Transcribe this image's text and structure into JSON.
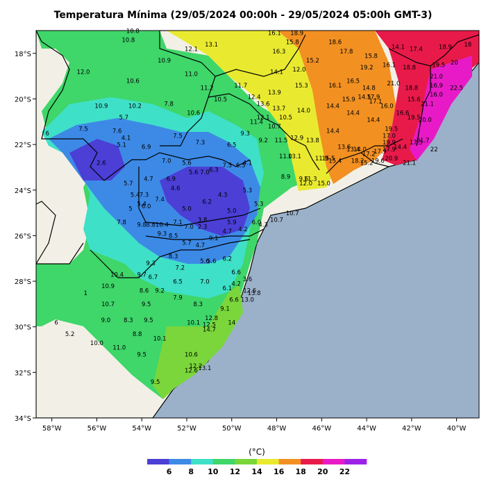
{
  "title": "Temperatura Mínima (29/05/2024 00:00h - 29/05/2024 05:00h GMT-3)",
  "map": {
    "lon_range": [
      -58.7,
      -39.0
    ],
    "lat_range": [
      -34.0,
      -17.0
    ],
    "lon_ticks": [
      {
        "lon": -58,
        "label": "58°W"
      },
      {
        "lon": -56,
        "label": "56°W"
      },
      {
        "lon": -54,
        "label": "54°W"
      },
      {
        "lon": -52,
        "label": "52°W"
      },
      {
        "lon": -50,
        "label": "50°W"
      },
      {
        "lon": -48,
        "label": "48°W"
      },
      {
        "lon": -46,
        "label": "46°W"
      },
      {
        "lon": -44,
        "label": "44°W"
      },
      {
        "lon": -42,
        "label": "42°W"
      },
      {
        "lon": -40,
        "label": "40°W"
      }
    ],
    "lat_ticks": [
      {
        "lat": -18,
        "label": "18°S"
      },
      {
        "lat": -20,
        "label": "20°S"
      },
      {
        "lat": -22,
        "label": "22°S"
      },
      {
        "lat": -24,
        "label": "24°S"
      },
      {
        "lat": -26,
        "label": "26°S"
      },
      {
        "lat": -28,
        "label": "28°S"
      },
      {
        "lat": -30,
        "label": "30°S"
      },
      {
        "lat": -32,
        "label": "32°S"
      },
      {
        "lat": -34,
        "label": "34°S"
      }
    ],
    "ocean_color": "#9bb1c9",
    "land_color": "#f2f0e6",
    "station_values": [
      {
        "lon": -54.4,
        "lat": -17.1,
        "v": "10.8"
      },
      {
        "lon": -54.6,
        "lat": -17.5,
        "v": "10.8"
      },
      {
        "lon": -51.8,
        "lat": -17.9,
        "v": "12.1"
      },
      {
        "lon": -50.9,
        "lat": -17.7,
        "v": "13.1"
      },
      {
        "lon": -53.0,
        "lat": -18.4,
        "v": "10.9"
      },
      {
        "lon": -56.6,
        "lat": -18.9,
        "v": "12.0"
      },
      {
        "lon": -54.4,
        "lat": -19.3,
        "v": "10.6"
      },
      {
        "lon": -51.8,
        "lat": -19.0,
        "v": "11.0"
      },
      {
        "lon": -51.1,
        "lat": -19.6,
        "v": "11.2"
      },
      {
        "lon": -49.6,
        "lat": -19.5,
        "v": "11.7"
      },
      {
        "lon": -50.5,
        "lat": -20.1,
        "v": "10.5"
      },
      {
        "lon": -55.8,
        "lat": -20.4,
        "v": "10.9"
      },
      {
        "lon": -54.3,
        "lat": -20.4,
        "v": "10.2"
      },
      {
        "lon": -52.8,
        "lat": -20.3,
        "v": "7.8"
      },
      {
        "lon": -51.7,
        "lat": -20.7,
        "v": "10.6"
      },
      {
        "lon": -54.8,
        "lat": -20.9,
        "v": "5.7"
      },
      {
        "lon": -56.6,
        "lat": -21.4,
        "v": "7.5"
      },
      {
        "lon": -55.1,
        "lat": -21.5,
        "v": "7.6"
      },
      {
        "lon": -54.7,
        "lat": -21.8,
        "v": "4.1"
      },
      {
        "lon": -58.2,
        "lat": -21.6,
        "v": "6"
      },
      {
        "lon": -52.4,
        "lat": -21.7,
        "v": "7.5"
      },
      {
        "lon": -54.9,
        "lat": -22.1,
        "v": "5.1"
      },
      {
        "lon": -53.8,
        "lat": -22.2,
        "v": "6.9"
      },
      {
        "lon": -51.4,
        "lat": -22.0,
        "v": "7.3"
      },
      {
        "lon": -50.0,
        "lat": -22.1,
        "v": "6.5"
      },
      {
        "lon": -49.4,
        "lat": -21.6,
        "v": "9.3"
      },
      {
        "lon": -48.6,
        "lat": -21.9,
        "v": "9.2"
      },
      {
        "lon": -47.8,
        "lat": -21.9,
        "v": "11.5"
      },
      {
        "lon": -55.8,
        "lat": -22.9,
        "v": "2.6"
      },
      {
        "lon": -52.9,
        "lat": -22.8,
        "v": "7.0"
      },
      {
        "lon": -52.0,
        "lat": -22.9,
        "v": "5.6"
      },
      {
        "lon": -51.7,
        "lat": -23.3,
        "v": "5.6"
      },
      {
        "lon": -51.2,
        "lat": -23.3,
        "v": "7.0"
      },
      {
        "lon": -50.8,
        "lat": -23.2,
        "v": "6.3"
      },
      {
        "lon": -50.2,
        "lat": -23.0,
        "v": "7.5"
      },
      {
        "lon": -49.6,
        "lat": -23.0,
        "v": "6.5"
      },
      {
        "lon": -49.3,
        "lat": -22.9,
        "v": "4.1"
      },
      {
        "lon": -53.7,
        "lat": -23.6,
        "v": "4.7"
      },
      {
        "lon": -52.7,
        "lat": -23.6,
        "v": "6.9"
      },
      {
        "lon": -54.6,
        "lat": -23.8,
        "v": "5.7"
      },
      {
        "lon": -52.5,
        "lat": -24.0,
        "v": "4.6"
      },
      {
        "lon": -50.4,
        "lat": -24.3,
        "v": "4.3"
      },
      {
        "lon": -49.3,
        "lat": -24.1,
        "v": "5.3"
      },
      {
        "lon": -54.3,
        "lat": -24.3,
        "v": "5.4"
      },
      {
        "lon": -53.9,
        "lat": -24.3,
        "v": "7.3"
      },
      {
        "lon": -53.2,
        "lat": -24.5,
        "v": "7.4"
      },
      {
        "lon": -51.1,
        "lat": -24.6,
        "v": "6.2"
      },
      {
        "lon": -54.0,
        "lat": -24.7,
        "v": "5.4"
      },
      {
        "lon": -53.8,
        "lat": -24.8,
        "v": "6.0"
      },
      {
        "lon": -52.0,
        "lat": -24.9,
        "v": "5.0"
      },
      {
        "lon": -50.0,
        "lat": -25.0,
        "v": "5.0"
      },
      {
        "lon": -48.8,
        "lat": -24.7,
        "v": "5.3"
      },
      {
        "lon": -54.5,
        "lat": -24.9,
        "v": "5"
      },
      {
        "lon": -54.9,
        "lat": -25.5,
        "v": "7.8"
      },
      {
        "lon": -54.0,
        "lat": -25.6,
        "v": "9.8"
      },
      {
        "lon": -53.6,
        "lat": -25.6,
        "v": "8.8"
      },
      {
        "lon": -53.1,
        "lat": -25.6,
        "v": "10.4"
      },
      {
        "lon": -52.4,
        "lat": -25.5,
        "v": "7.1"
      },
      {
        "lon": -51.9,
        "lat": -25.7,
        "v": "7.0"
      },
      {
        "lon": -51.3,
        "lat": -25.4,
        "v": "3.8"
      },
      {
        "lon": -51.3,
        "lat": -25.7,
        "v": "2.3"
      },
      {
        "lon": -50.0,
        "lat": -25.5,
        "v": "5.9"
      },
      {
        "lon": -49.5,
        "lat": -25.8,
        "v": "4.2"
      },
      {
        "lon": -50.2,
        "lat": -25.9,
        "v": "4.7"
      },
      {
        "lon": -48.9,
        "lat": -25.5,
        "v": "6.0"
      },
      {
        "lon": -48.6,
        "lat": -25.6,
        "v": "4.3"
      },
      {
        "lon": -48.0,
        "lat": -25.4,
        "v": "10.7"
      },
      {
        "lon": -47.3,
        "lat": -25.1,
        "v": "10.7"
      },
      {
        "lon": -53.1,
        "lat": -26.0,
        "v": "9.3"
      },
      {
        "lon": -52.6,
        "lat": -26.1,
        "v": "8.5"
      },
      {
        "lon": -50.8,
        "lat": -26.2,
        "v": "9.1"
      },
      {
        "lon": -52.0,
        "lat": -26.4,
        "v": "5.7"
      },
      {
        "lon": -51.4,
        "lat": -26.5,
        "v": "4.7"
      },
      {
        "lon": -52.6,
        "lat": -27.0,
        "v": "8.3"
      },
      {
        "lon": -51.2,
        "lat": -27.2,
        "v": "5.6"
      },
      {
        "lon": -50.9,
        "lat": -27.2,
        "v": "5.6"
      },
      {
        "lon": -50.2,
        "lat": -27.1,
        "v": "6.2"
      },
      {
        "lon": -53.6,
        "lat": -27.3,
        "v": "9.3"
      },
      {
        "lon": -52.3,
        "lat": -27.5,
        "v": "7.2"
      },
      {
        "lon": -49.8,
        "lat": -27.7,
        "v": "6.6"
      },
      {
        "lon": -55.1,
        "lat": -27.8,
        "v": "10.4"
      },
      {
        "lon": -54.0,
        "lat": -27.8,
        "v": "9.7"
      },
      {
        "lon": -53.5,
        "lat": -27.9,
        "v": "6.7"
      },
      {
        "lon": -52.4,
        "lat": -28.1,
        "v": "6.5"
      },
      {
        "lon": -51.2,
        "lat": -28.1,
        "v": "7.0"
      },
      {
        "lon": -49.3,
        "lat": -28.0,
        "v": "3.6"
      },
      {
        "lon": -49.8,
        "lat": -28.2,
        "v": "4.2"
      },
      {
        "lon": -50.2,
        "lat": -28.4,
        "v": "6.1"
      },
      {
        "lon": -55.5,
        "lat": -28.3,
        "v": "10.9"
      },
      {
        "lon": -53.9,
        "lat": -28.5,
        "v": "8.6"
      },
      {
        "lon": -53.2,
        "lat": -28.5,
        "v": "9.2"
      },
      {
        "lon": -52.4,
        "lat": -28.8,
        "v": "7.9"
      },
      {
        "lon": -49.2,
        "lat": -28.5,
        "v": "12.6"
      },
      {
        "lon": -49.0,
        "lat": -28.6,
        "v": "13.8"
      },
      {
        "lon": -49.3,
        "lat": -28.9,
        "v": "13.0"
      },
      {
        "lon": -49.9,
        "lat": -28.9,
        "v": "6.6"
      },
      {
        "lon": -56.5,
        "lat": -28.6,
        "v": "1"
      },
      {
        "lon": -55.5,
        "lat": -29.1,
        "v": "10.7"
      },
      {
        "lon": -53.8,
        "lat": -29.1,
        "v": "9.5"
      },
      {
        "lon": -51.5,
        "lat": -29.1,
        "v": "8.3"
      },
      {
        "lon": -50.3,
        "lat": -29.3,
        "v": "9.1"
      },
      {
        "lon": -55.6,
        "lat": -29.8,
        "v": "9.0"
      },
      {
        "lon": -54.6,
        "lat": -29.8,
        "v": "8.3"
      },
      {
        "lon": -53.7,
        "lat": -29.8,
        "v": "9.5"
      },
      {
        "lon": -51.7,
        "lat": -29.9,
        "v": "10.1"
      },
      {
        "lon": -50.9,
        "lat": -29.7,
        "v": "12.8"
      },
      {
        "lon": -57.8,
        "lat": -29.9,
        "v": "6"
      },
      {
        "lon": -51.0,
        "lat": -30.0,
        "v": "12.5"
      },
      {
        "lon": -50.0,
        "lat": -29.9,
        "v": "14"
      },
      {
        "lon": -51.0,
        "lat": -30.2,
        "v": "14.7"
      },
      {
        "lon": -54.2,
        "lat": -30.4,
        "v": "8.8"
      },
      {
        "lon": -53.2,
        "lat": -30.6,
        "v": "10.1"
      },
      {
        "lon": -57.2,
        "lat": -30.4,
        "v": "5.2"
      },
      {
        "lon": -56.0,
        "lat": -30.8,
        "v": "10.0"
      },
      {
        "lon": -55.0,
        "lat": -31.0,
        "v": "11.0"
      },
      {
        "lon": -51.8,
        "lat": -31.3,
        "v": "10.6"
      },
      {
        "lon": -54.0,
        "lat": -31.3,
        "v": "9.5"
      },
      {
        "lon": -51.6,
        "lat": -31.8,
        "v": "12.2"
      },
      {
        "lon": -51.2,
        "lat": -31.9,
        "v": "13.1"
      },
      {
        "lon": -51.8,
        "lat": -32.0,
        "v": "12.6"
      },
      {
        "lon": -53.4,
        "lat": -32.5,
        "v": "9.5"
      },
      {
        "lon": -49.0,
        "lat": -20.0,
        "v": "12.4"
      },
      {
        "lon": -48.6,
        "lat": -20.3,
        "v": "13.6"
      },
      {
        "lon": -48.1,
        "lat": -19.8,
        "v": "13.9"
      },
      {
        "lon": -47.9,
        "lat": -20.5,
        "v": "13.7"
      },
      {
        "lon": -47.6,
        "lat": -20.9,
        "v": "10.5"
      },
      {
        "lon": -46.8,
        "lat": -20.6,
        "v": "14.0"
      },
      {
        "lon": -48.6,
        "lat": -20.9,
        "v": "12.1"
      },
      {
        "lon": -48.9,
        "lat": -21.1,
        "v": "11.4"
      },
      {
        "lon": -48.1,
        "lat": -21.3,
        "v": "10.7"
      },
      {
        "lon": -47.1,
        "lat": -21.8,
        "v": "12.9"
      },
      {
        "lon": -46.4,
        "lat": -21.9,
        "v": "13.8"
      },
      {
        "lon": -47.2,
        "lat": -22.6,
        "v": "13.1"
      },
      {
        "lon": -47.6,
        "lat": -22.6,
        "v": "11.0"
      },
      {
        "lon": -46.0,
        "lat": -22.7,
        "v": "11.9"
      },
      {
        "lon": -45.7,
        "lat": -22.7,
        "v": "15.5"
      },
      {
        "lon": -45.4,
        "lat": -22.8,
        "v": "15.4"
      },
      {
        "lon": -47.6,
        "lat": -23.5,
        "v": "8.9"
      },
      {
        "lon": -46.8,
        "lat": -23.6,
        "v": "9.6"
      },
      {
        "lon": -46.5,
        "lat": -23.6,
        "v": "11.3"
      },
      {
        "lon": -46.7,
        "lat": -23.8,
        "v": "12.0"
      },
      {
        "lon": -45.9,
        "lat": -23.8,
        "v": "15.0"
      },
      {
        "lon": -45.0,
        "lat": -22.2,
        "v": "13.6"
      },
      {
        "lon": -44.6,
        "lat": -22.3,
        "v": "13.4"
      },
      {
        "lon": -44.3,
        "lat": -22.3,
        "v": "14.0"
      },
      {
        "lon": -45.5,
        "lat": -21.5,
        "v": "14.4"
      },
      {
        "lon": -44.6,
        "lat": -20.7,
        "v": "14.4"
      },
      {
        "lon": -45.5,
        "lat": -20.4,
        "v": "14.4"
      },
      {
        "lon": -44.8,
        "lat": -20.1,
        "v": "15.9"
      },
      {
        "lon": -45.4,
        "lat": -19.5,
        "v": "16.1"
      },
      {
        "lon": -44.6,
        "lat": -19.3,
        "v": "16.5"
      },
      {
        "lon": -43.9,
        "lat": -19.6,
        "v": "14.8"
      },
      {
        "lon": -44.1,
        "lat": -20.0,
        "v": "14.5"
      },
      {
        "lon": -43.7,
        "lat": -20.0,
        "v": "17.9"
      },
      {
        "lon": -43.6,
        "lat": -20.2,
        "v": "17.1"
      },
      {
        "lon": -43.1,
        "lat": -20.4,
        "v": "16.0"
      },
      {
        "lon": -43.7,
        "lat": -21.0,
        "v": "14.4"
      },
      {
        "lon": -42.4,
        "lat": -20.7,
        "v": "16.6"
      },
      {
        "lon": -42.9,
        "lat": -21.4,
        "v": "19.5"
      },
      {
        "lon": -43.0,
        "lat": -21.7,
        "v": "17.0"
      },
      {
        "lon": -41.4,
        "lat": -21.0,
        "v": "20.0"
      },
      {
        "lon": -43.9,
        "lat": -22.5,
        "v": "17.2"
      },
      {
        "lon": -43.4,
        "lat": -22.4,
        "v": "17.9"
      },
      {
        "lon": -43.0,
        "lat": -22.3,
        "v": "17.9"
      },
      {
        "lon": -42.5,
        "lat": -22.2,
        "v": "14.4"
      },
      {
        "lon": -43.0,
        "lat": -22.0,
        "v": "19.9"
      },
      {
        "lon": -41.8,
        "lat": -22.0,
        "v": "17.5"
      },
      {
        "lon": -41.0,
        "lat": -22.3,
        "v": "22"
      },
      {
        "lon": -44.4,
        "lat": -22.8,
        "v": "18.2"
      },
      {
        "lon": -44.0,
        "lat": -22.9,
        "v": "15.2"
      },
      {
        "lon": -43.5,
        "lat": -22.8,
        "v": "19.6"
      },
      {
        "lon": -42.9,
        "lat": -22.7,
        "v": "20.9"
      },
      {
        "lon": -42.1,
        "lat": -22.9,
        "v": "21.1"
      },
      {
        "lon": -41.5,
        "lat": -21.9,
        "v": "21.7"
      },
      {
        "lon": -41.9,
        "lat": -20.9,
        "v": "19.5"
      },
      {
        "lon": -41.3,
        "lat": -20.3,
        "v": "21.1"
      },
      {
        "lon": -40.9,
        "lat": -19.9,
        "v": "16.0"
      },
      {
        "lon": -40.9,
        "lat": -19.5,
        "v": "16.9"
      },
      {
        "lon": -41.9,
        "lat": -20.1,
        "v": "15.6"
      },
      {
        "lon": -42.8,
        "lat": -19.4,
        "v": "21.0"
      },
      {
        "lon": -42.0,
        "lat": -19.6,
        "v": "18.8"
      },
      {
        "lon": -40.9,
        "lat": -19.1,
        "v": "21.0"
      },
      {
        "lon": -40.0,
        "lat": -19.6,
        "v": "22.5"
      },
      {
        "lon": -40.1,
        "lat": -18.5,
        "v": "20"
      },
      {
        "lon": -40.8,
        "lat": -18.6,
        "v": "19.5"
      },
      {
        "lon": -42.1,
        "lat": -18.7,
        "v": "18.8"
      },
      {
        "lon": -43.0,
        "lat": -18.6,
        "v": "16.1"
      },
      {
        "lon": -43.8,
        "lat": -18.2,
        "v": "15.8"
      },
      {
        "lon": -44.0,
        "lat": -18.7,
        "v": "19.2"
      },
      {
        "lon": -45.4,
        "lat": -17.6,
        "v": "18.6"
      },
      {
        "lon": -44.9,
        "lat": -18.0,
        "v": "17.8"
      },
      {
        "lon": -46.4,
        "lat": -18.4,
        "v": "15.2"
      },
      {
        "lon": -47.0,
        "lat": -18.8,
        "v": "12.0"
      },
      {
        "lon": -46.9,
        "lat": -19.5,
        "v": "15.3"
      },
      {
        "lon": -47.3,
        "lat": -17.6,
        "v": "15.8"
      },
      {
        "lon": -47.1,
        "lat": -17.2,
        "v": "18.9"
      },
      {
        "lon": -48.1,
        "lat": -17.2,
        "v": "16.1"
      },
      {
        "lon": -47.9,
        "lat": -18.0,
        "v": "16.3"
      },
      {
        "lon": -48.0,
        "lat": -18.9,
        "v": "14.1"
      },
      {
        "lon": -42.6,
        "lat": -17.8,
        "v": "14.1"
      },
      {
        "lon": -41.8,
        "lat": -17.9,
        "v": "17.4"
      },
      {
        "lon": -40.5,
        "lat": -17.8,
        "v": "18.9"
      },
      {
        "lon": -39.5,
        "lat": -17.7,
        "v": "18"
      }
    ]
  },
  "legend": {
    "unit": "(°C)",
    "ticks": [
      "6",
      "8",
      "10",
      "12",
      "14",
      "16",
      "18",
      "20",
      "22"
    ],
    "colors": [
      "#4b3fd6",
      "#3d8ae6",
      "#3fe0c8",
      "#3fd66a",
      "#7ad63a",
      "#e9e930",
      "#f29022",
      "#e81a4a",
      "#e81ac8",
      "#9c22e8"
    ]
  }
}
